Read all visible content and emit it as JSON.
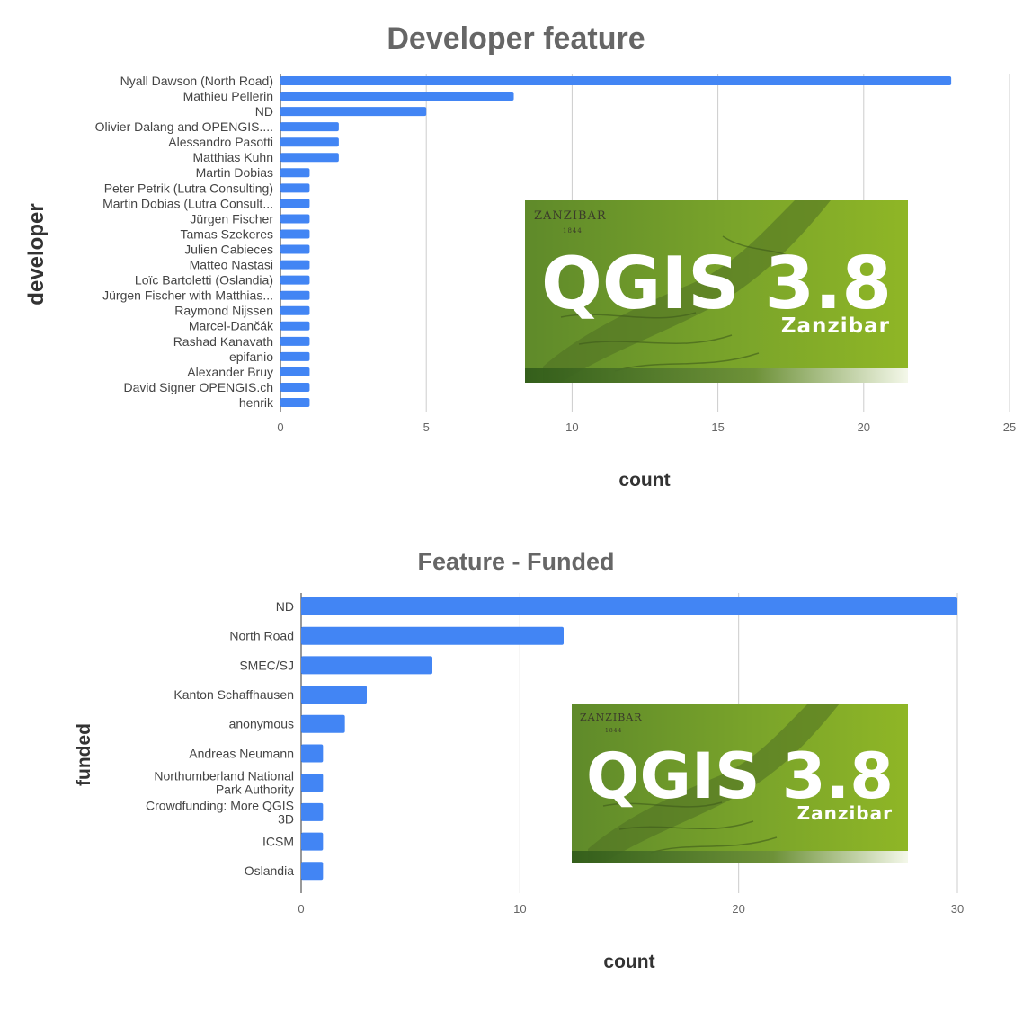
{
  "chart_data": [
    {
      "type": "bar",
      "orientation": "horizontal",
      "title": "Developer feature",
      "xlabel": "count",
      "ylabel": "developer",
      "xlim": [
        0,
        25
      ],
      "xticks": [
        0,
        5,
        10,
        15,
        20,
        25
      ],
      "grid": true,
      "bar_color": "#4285f4",
      "categories": [
        "Nyall Dawson (North Road)",
        "Mathieu Pellerin",
        "ND",
        "Olivier Dalang and OPENGIS....",
        "Alessandro Pasotti",
        "Matthias Kuhn",
        "Martin Dobias",
        "Peter Petrik (Lutra Consulting)",
        "Martin Dobias (Lutra Consult...",
        "Jürgen Fischer",
        "Tamas Szekeres",
        "Julien Cabieces",
        "Matteo Nastasi",
        "Loïc Bartoletti (Oslandia)",
        "Jürgen Fischer with Matthias...",
        "Raymond Nijssen",
        "Marcel-Dančák",
        "Rashad Kanavath",
        "epifanio",
        "Alexander Bruy",
        "David Signer OPENGIS.ch",
        "henrik"
      ],
      "values": [
        23,
        8,
        5,
        2,
        2,
        2,
        1,
        1,
        1,
        1,
        1,
        1,
        1,
        1,
        1,
        1,
        1,
        1,
        1,
        1,
        1,
        1
      ]
    },
    {
      "type": "bar",
      "orientation": "horizontal",
      "title": "Feature - Funded",
      "xlabel": "count",
      "ylabel": "funded",
      "xlim": [
        0,
        30
      ],
      "xticks": [
        0,
        10,
        20,
        30
      ],
      "grid": true,
      "bar_color": "#4285f4",
      "categories": [
        [
          "ND"
        ],
        [
          "North Road"
        ],
        [
          "SMEC/SJ"
        ],
        [
          "Kanton Schaffhausen"
        ],
        [
          "anonymous"
        ],
        [
          "Andreas Neumann"
        ],
        [
          "Northumberland National",
          "Park Authority"
        ],
        [
          "Crowdfunding: More QGIS",
          "3D"
        ],
        [
          "ICSM"
        ],
        [
          "Oslandia"
        ]
      ],
      "values": [
        30,
        12,
        6,
        3,
        2,
        1,
        1,
        1,
        1,
        1
      ]
    }
  ],
  "banners": [
    {
      "logo_text": "QGIS 3.8",
      "subtitle": "Zanzibar",
      "map_title": "ZANZIBAR",
      "map_year": "1844"
    },
    {
      "logo_text": "QGIS 3.8",
      "subtitle": "Zanzibar",
      "map_title": "ZANZIBAR",
      "map_year": "1844"
    }
  ]
}
